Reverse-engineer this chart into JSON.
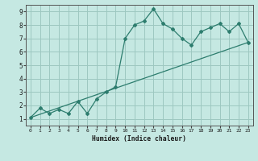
{
  "xlabel": "Humidex (Indice chaleur)",
  "ylabel": "",
  "xlim": [
    -0.5,
    23.5
  ],
  "ylim": [
    0.5,
    9.5
  ],
  "xticks": [
    0,
    1,
    2,
    3,
    4,
    5,
    6,
    7,
    8,
    9,
    10,
    11,
    12,
    13,
    14,
    15,
    16,
    17,
    18,
    19,
    20,
    21,
    22,
    23
  ],
  "yticks": [
    1,
    2,
    3,
    4,
    5,
    6,
    7,
    8,
    9
  ],
  "line_color": "#2d7d6e",
  "bg_color": "#c5e8e2",
  "grid_color": "#9dc8c0",
  "jagged_x": [
    0,
    1,
    2,
    3,
    4,
    5,
    6,
    7,
    8,
    9,
    10,
    11,
    12,
    13,
    14,
    15,
    16,
    17,
    18,
    19,
    20,
    21,
    22,
    23
  ],
  "jagged_y": [
    1.1,
    1.8,
    1.4,
    1.7,
    1.4,
    2.3,
    1.4,
    2.5,
    3.0,
    3.4,
    7.0,
    8.0,
    8.3,
    9.2,
    8.1,
    7.7,
    7.0,
    6.5,
    7.5,
    7.8,
    8.1,
    7.5,
    8.1,
    6.7
  ],
  "trend_x": [
    0,
    23
  ],
  "trend_y": [
    1.1,
    6.7
  ]
}
